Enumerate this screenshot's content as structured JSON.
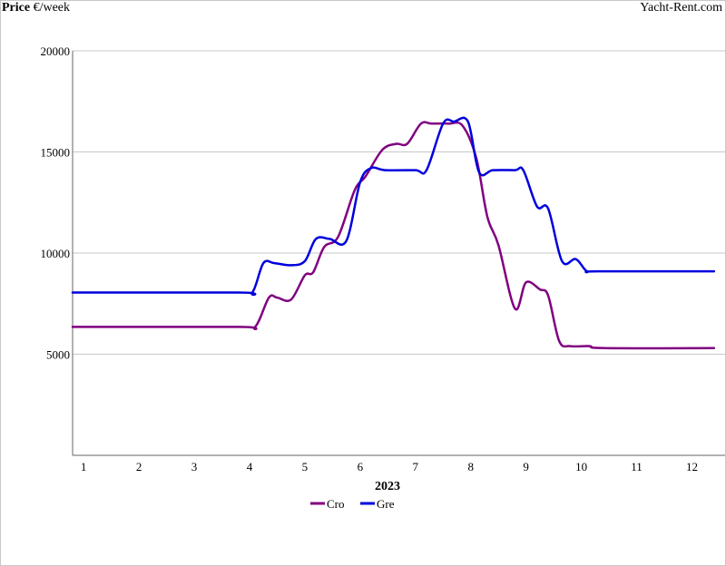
{
  "header": {
    "ylabel_bold": "Price",
    "ylabel_unit": " €/week",
    "brand": "Yacht-Rent.com"
  },
  "chart_data": {
    "type": "line",
    "xlabel": "2023",
    "ylabel": "Price €/week",
    "xlim": [
      0.8,
      12.6
    ],
    "ylim": [
      0,
      20000
    ],
    "x_ticks": [
      1,
      2,
      3,
      4,
      5,
      6,
      7,
      8,
      9,
      10,
      11,
      12
    ],
    "y_ticks": [
      5000,
      10000,
      15000,
      20000
    ],
    "grid": "horizontal",
    "legend": "bottom-center",
    "colors": {
      "Cro": "#800080",
      "Gre": "#0000dd"
    },
    "series": [
      {
        "name": "Cro",
        "x": [
          0.8,
          3.8,
          4.1,
          4.35,
          4.5,
          4.75,
          5.0,
          5.15,
          5.35,
          5.6,
          5.9,
          6.1,
          6.4,
          6.65,
          6.85,
          7.1,
          7.3,
          7.6,
          7.85,
          8.1,
          8.3,
          8.5,
          8.8,
          9.0,
          9.25,
          9.4,
          9.6,
          9.8,
          10.15,
          10.4,
          12.4
        ],
        "y": [
          6350,
          6350,
          6350,
          7800,
          7800,
          7700,
          8900,
          9050,
          10300,
          10800,
          13100,
          13800,
          15100,
          15400,
          15400,
          16400,
          16400,
          16400,
          16300,
          14700,
          11800,
          10400,
          7250,
          8550,
          8200,
          7900,
          5650,
          5400,
          5400,
          5300,
          5300
        ]
      },
      {
        "name": "Gre",
        "x": [
          0.8,
          3.8,
          4.05,
          4.25,
          4.45,
          4.75,
          5.0,
          5.2,
          5.45,
          5.75,
          6.0,
          6.2,
          6.45,
          7.0,
          7.2,
          7.5,
          7.7,
          7.95,
          8.15,
          8.4,
          8.8,
          8.95,
          9.2,
          9.4,
          9.65,
          9.9,
          10.1,
          10.3,
          12.4
        ],
        "y": [
          8050,
          8050,
          8050,
          9500,
          9500,
          9400,
          9600,
          10700,
          10700,
          10600,
          13500,
          14200,
          14100,
          14100,
          14100,
          16400,
          16500,
          16500,
          14000,
          14100,
          14100,
          14100,
          12300,
          12200,
          9600,
          9700,
          9100,
          9100,
          9100
        ]
      }
    ]
  }
}
